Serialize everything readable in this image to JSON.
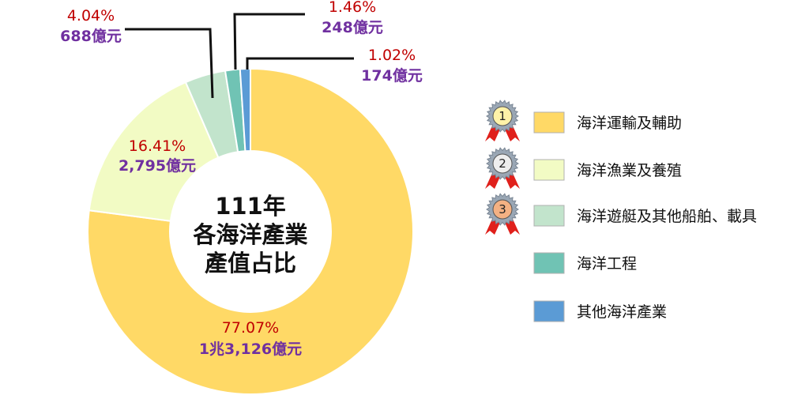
{
  "chart_data": {
    "type": "pie",
    "style": "donut",
    "center_label": [
      "111年",
      "各海洋產業",
      "產值占比"
    ],
    "categories": [
      "海洋運輸及輔助",
      "海洋漁業及養殖",
      "海洋遊艇及其他船舶、載具",
      "海洋工程",
      "其他海洋產業"
    ],
    "values": [
      77.07,
      16.41,
      4.04,
      1.46,
      1.02
    ],
    "percent_labels": [
      "77.07%",
      "16.41%",
      "4.04%",
      "1.46%",
      "1.02%"
    ],
    "amount_labels": [
      "1兆3,126億元",
      "2,795億元",
      "688億元",
      "248億元",
      "174億元"
    ],
    "colors": [
      "#ffd966",
      "#f2fbc4",
      "#c2e4cc",
      "#70c3b4",
      "#5b9bd5"
    ],
    "ranking_medals": [
      {
        "rank": "1",
        "color": "#fff2a8"
      },
      {
        "rank": "2",
        "color": "#eeeeee"
      },
      {
        "rank": "3",
        "color": "#f4b183"
      }
    ],
    "legend_position": "right",
    "label_colors": {
      "percent": "#c00000",
      "amount": "#7030a0"
    }
  }
}
